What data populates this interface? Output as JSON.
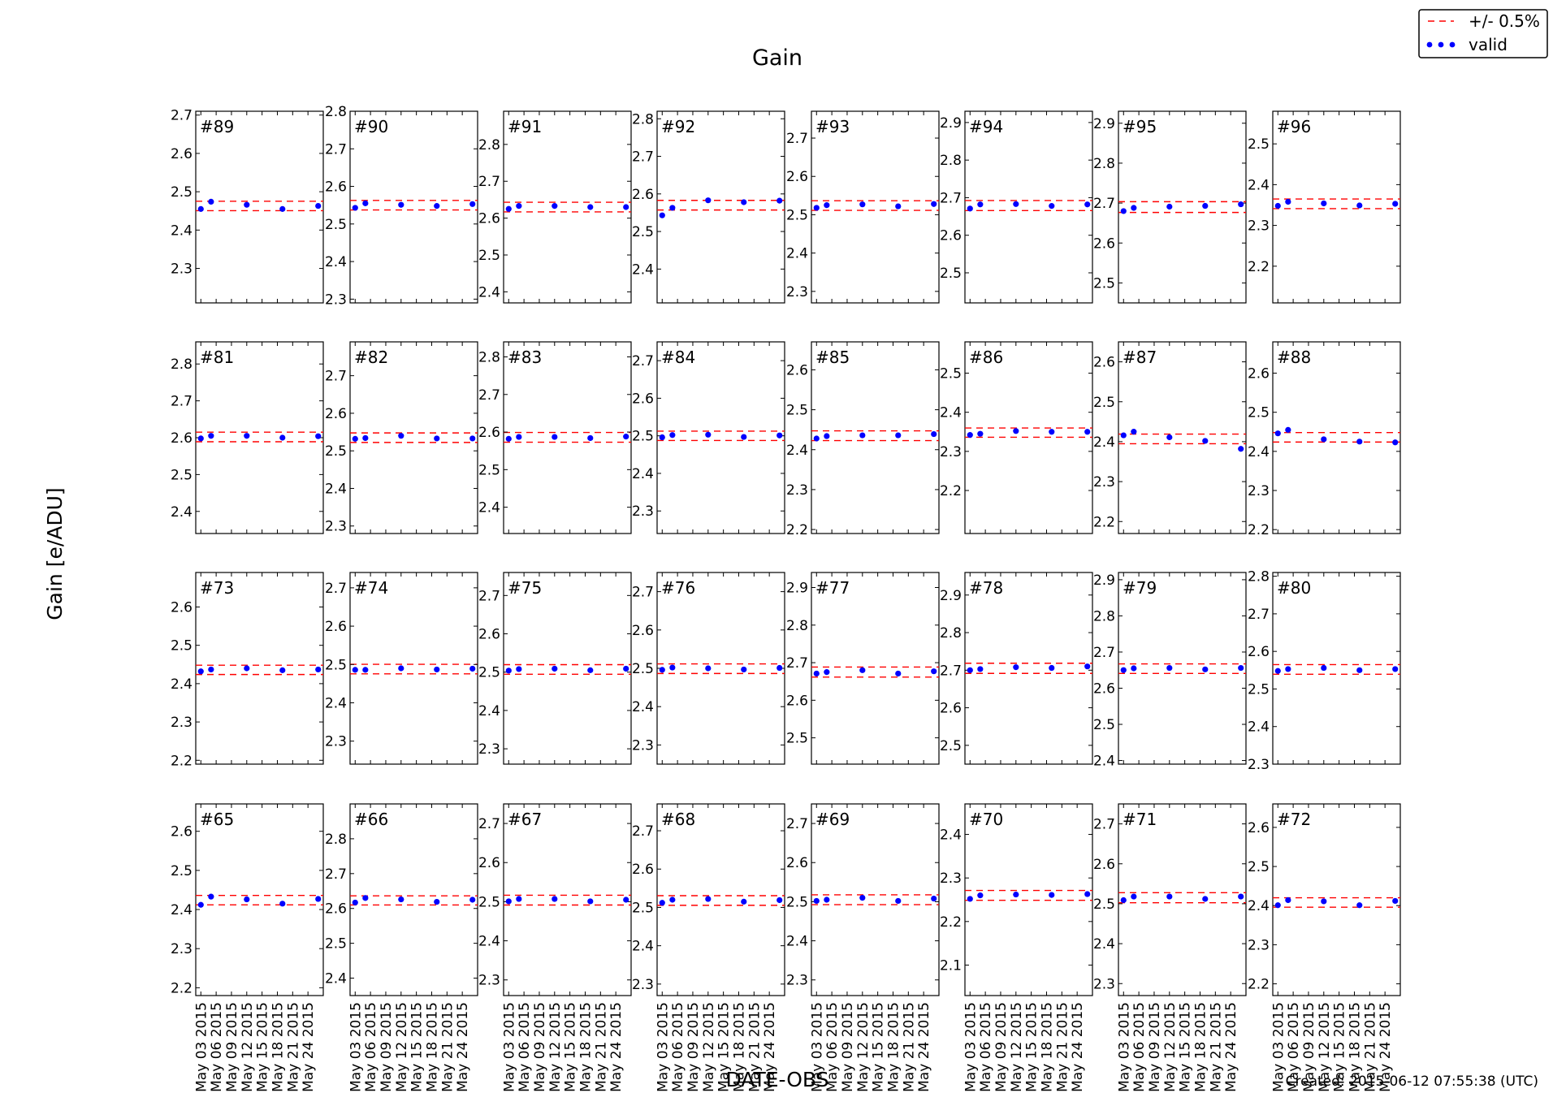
{
  "chart_data": {
    "type": "scatter",
    "title": "Gain",
    "ylabel": "Gain [e/ADU]",
    "xlabel": "DATE-OBS",
    "footer": "Created: 2015-06-12 07:55:38 (UTC)",
    "legend": {
      "placement": "top-right",
      "entries": [
        {
          "label": "+/- 0.5%",
          "style": "dashed-line",
          "color": "#ff0000"
        },
        {
          "label": "valid",
          "style": "dots",
          "color": "#0000ff"
        }
      ]
    },
    "x_dates": [
      "2015-05-03",
      "2015-05-05",
      "2015-05-12",
      "2015-05-19",
      "2015-05-26"
    ],
    "x_ticks": [
      "May 03 2015",
      "May 06 2015",
      "May 09 2015",
      "May 12 2015",
      "May 15 2015",
      "May 18 2015",
      "May 21 2015",
      "May 24 2015"
    ],
    "xlim": [
      "2015-05-02",
      "2015-05-27"
    ],
    "band_percent": 0.5,
    "colors": {
      "points": "#0000ff",
      "band": "#ff0000"
    },
    "panels": [
      {
        "label": "#89",
        "ylim": [
          2.21,
          2.71
        ],
        "yticks": [
          "2.3",
          "2.4",
          "2.5",
          "2.6",
          "2.7"
        ],
        "values": [
          2.455,
          2.474,
          2.466,
          2.455,
          2.463
        ],
        "center": 2.463
      },
      {
        "label": "#90",
        "ylim": [
          2.29,
          2.8
        ],
        "yticks": [
          "2.3",
          "2.4",
          "2.5",
          "2.6",
          "2.7",
          "2.8"
        ],
        "values": [
          2.543,
          2.555,
          2.551,
          2.548,
          2.553
        ],
        "center": 2.55
      },
      {
        "label": "#91",
        "ylim": [
          2.37,
          2.89
        ],
        "yticks": [
          "2.4",
          "2.5",
          "2.6",
          "2.7",
          "2.8"
        ],
        "values": [
          2.625,
          2.633,
          2.633,
          2.63,
          2.63
        ],
        "center": 2.63
      },
      {
        "label": "#92",
        "ylim": [
          2.31,
          2.82
        ],
        "yticks": [
          "2.4",
          "2.5",
          "2.6",
          "2.7",
          "2.8"
        ],
        "values": [
          2.543,
          2.563,
          2.583,
          2.578,
          2.582
        ],
        "center": 2.57
      },
      {
        "label": "#93",
        "ylim": [
          2.27,
          2.77
        ],
        "yticks": [
          "2.3",
          "2.4",
          "2.5",
          "2.6",
          "2.7"
        ],
        "values": [
          2.518,
          2.525,
          2.527,
          2.522,
          2.528
        ],
        "center": 2.524
      },
      {
        "label": "#94",
        "ylim": [
          2.42,
          2.93
        ],
        "yticks": [
          "2.5",
          "2.6",
          "2.7",
          "2.8",
          "2.9"
        ],
        "values": [
          2.671,
          2.682,
          2.683,
          2.678,
          2.682
        ],
        "center": 2.679
      },
      {
        "label": "#95",
        "ylim": [
          2.45,
          2.93
        ],
        "yticks": [
          "2.5",
          "2.6",
          "2.7",
          "2.8",
          "2.9"
        ],
        "values": [
          2.68,
          2.688,
          2.691,
          2.693,
          2.697
        ],
        "center": 2.69
      },
      {
        "label": "#96",
        "ylim": [
          2.11,
          2.58
        ],
        "yticks": [
          "2.2",
          "2.3",
          "2.4",
          "2.5"
        ],
        "values": [
          2.348,
          2.358,
          2.354,
          2.349,
          2.353
        ],
        "center": 2.353
      },
      {
        "label": "#81",
        "ylim": [
          2.34,
          2.86
        ],
        "yticks": [
          "2.4",
          "2.5",
          "2.6",
          "2.7",
          "2.8"
        ],
        "values": [
          2.598,
          2.605,
          2.605,
          2.6,
          2.604
        ],
        "center": 2.602
      },
      {
        "label": "#82",
        "ylim": [
          2.28,
          2.79
        ],
        "yticks": [
          "2.3",
          "2.4",
          "2.5",
          "2.6",
          "2.7"
        ],
        "values": [
          2.532,
          2.534,
          2.54,
          2.533,
          2.533
        ],
        "center": 2.535
      },
      {
        "label": "#83",
        "ylim": [
          2.33,
          2.84
        ],
        "yticks": [
          "2.4",
          "2.5",
          "2.6",
          "2.7",
          "2.8"
        ],
        "values": [
          2.582,
          2.587,
          2.587,
          2.584,
          2.588
        ],
        "center": 2.586
      },
      {
        "label": "#84",
        "ylim": [
          2.24,
          2.75
        ],
        "yticks": [
          "2.3",
          "2.4",
          "2.5",
          "2.6",
          "2.7"
        ],
        "values": [
          2.496,
          2.502,
          2.503,
          2.497,
          2.501
        ],
        "center": 2.5
      },
      {
        "label": "#85",
        "ylim": [
          2.19,
          2.67
        ],
        "yticks": [
          "2.2",
          "2.3",
          "2.4",
          "2.5",
          "2.6"
        ],
        "values": [
          2.428,
          2.434,
          2.436,
          2.436,
          2.439
        ],
        "center": 2.435
      },
      {
        "label": "#86",
        "ylim": [
          2.09,
          2.58
        ],
        "yticks": [
          "2.2",
          "2.3",
          "2.4",
          "2.5"
        ],
        "values": [
          2.342,
          2.345,
          2.352,
          2.35,
          2.35
        ],
        "center": 2.348
      },
      {
        "label": "#87",
        "ylim": [
          2.17,
          2.65
        ],
        "yticks": [
          "2.2",
          "2.3",
          "2.4",
          "2.5",
          "2.6"
        ],
        "values": [
          2.416,
          2.425,
          2.411,
          2.402,
          2.382
        ],
        "center": 2.407
      },
      {
        "label": "#88",
        "ylim": [
          2.19,
          2.68
        ],
        "yticks": [
          "2.2",
          "2.3",
          "2.4",
          "2.5",
          "2.6"
        ],
        "values": [
          2.446,
          2.455,
          2.431,
          2.425,
          2.423
        ],
        "center": 2.436
      },
      {
        "label": "#73",
        "ylim": [
          2.19,
          2.69
        ],
        "yticks": [
          "2.2",
          "2.3",
          "2.4",
          "2.5",
          "2.6"
        ],
        "values": [
          2.432,
          2.437,
          2.44,
          2.435,
          2.437
        ],
        "center": 2.436
      },
      {
        "label": "#74",
        "ylim": [
          2.24,
          2.74
        ],
        "yticks": [
          "2.3",
          "2.4",
          "2.5",
          "2.6",
          "2.7"
        ],
        "values": [
          2.486,
          2.486,
          2.49,
          2.487,
          2.489
        ],
        "center": 2.488
      },
      {
        "label": "#75",
        "ylim": [
          2.26,
          2.76
        ],
        "yticks": [
          "2.3",
          "2.4",
          "2.5",
          "2.6",
          "2.7"
        ],
        "values": [
          2.504,
          2.508,
          2.509,
          2.505,
          2.509
        ],
        "center": 2.507
      },
      {
        "label": "#76",
        "ylim": [
          2.25,
          2.75
        ],
        "yticks": [
          "2.3",
          "2.4",
          "2.5",
          "2.6",
          "2.7"
        ],
        "values": [
          2.496,
          2.502,
          2.5,
          2.497,
          2.501
        ],
        "center": 2.499
      },
      {
        "label": "#77",
        "ylim": [
          2.43,
          2.94
        ],
        "yticks": [
          "2.5",
          "2.6",
          "2.7",
          "2.8",
          "2.9"
        ],
        "values": [
          2.671,
          2.675,
          2.68,
          2.671,
          2.677
        ],
        "center": 2.675
      },
      {
        "label": "#78",
        "ylim": [
          2.45,
          2.96
        ],
        "yticks": [
          "2.5",
          "2.6",
          "2.7",
          "2.8",
          "2.9"
        ],
        "values": [
          2.7,
          2.703,
          2.708,
          2.706,
          2.71
        ],
        "center": 2.705
      },
      {
        "label": "#79",
        "ylim": [
          2.39,
          2.92
        ],
        "yticks": [
          "2.4",
          "2.5",
          "2.6",
          "2.7",
          "2.8",
          "2.9"
        ],
        "values": [
          2.65,
          2.655,
          2.656,
          2.652,
          2.656
        ],
        "center": 2.654
      },
      {
        "label": "#80",
        "ylim": [
          2.3,
          2.81
        ],
        "yticks": [
          "2.3",
          "2.4",
          "2.5",
          "2.6",
          "2.7",
          "2.8"
        ],
        "values": [
          2.548,
          2.553,
          2.556,
          2.55,
          2.553
        ],
        "center": 2.552
      },
      {
        "label": "#65",
        "ylim": [
          2.18,
          2.67
        ],
        "yticks": [
          "2.2",
          "2.3",
          "2.4",
          "2.5",
          "2.6"
        ],
        "values": [
          2.412,
          2.433,
          2.426,
          2.415,
          2.427
        ],
        "center": 2.424
      },
      {
        "label": "#66",
        "ylim": [
          2.35,
          2.9
        ],
        "yticks": [
          "2.4",
          "2.5",
          "2.6",
          "2.7",
          "2.8"
        ],
        "values": [
          2.617,
          2.63,
          2.626,
          2.619,
          2.625
        ],
        "center": 2.623
      },
      {
        "label": "#67",
        "ylim": [
          2.26,
          2.75
        ],
        "yticks": [
          "2.3",
          "2.4",
          "2.5",
          "2.6",
          "2.7"
        ],
        "values": [
          2.501,
          2.507,
          2.507,
          2.501,
          2.505
        ],
        "center": 2.504
      },
      {
        "label": "#68",
        "ylim": [
          2.27,
          2.77
        ],
        "yticks": [
          "2.3",
          "2.4",
          "2.5",
          "2.6",
          "2.7"
        ],
        "values": [
          2.512,
          2.52,
          2.522,
          2.515,
          2.519
        ],
        "center": 2.518
      },
      {
        "label": "#69",
        "ylim": [
          2.26,
          2.75
        ],
        "yticks": [
          "2.3",
          "2.4",
          "2.5",
          "2.6",
          "2.7"
        ],
        "values": [
          2.502,
          2.505,
          2.51,
          2.502,
          2.508
        ],
        "center": 2.505
      },
      {
        "label": "#70",
        "ylim": [
          2.03,
          2.47
        ],
        "yticks": [
          "2.1",
          "2.2",
          "2.3",
          "2.4"
        ],
        "values": [
          2.252,
          2.26,
          2.262,
          2.261,
          2.263
        ],
        "center": 2.26
      },
      {
        "label": "#71",
        "ylim": [
          2.27,
          2.75
        ],
        "yticks": [
          "2.3",
          "2.4",
          "2.5",
          "2.6",
          "2.7"
        ],
        "values": [
          2.509,
          2.518,
          2.518,
          2.512,
          2.518
        ],
        "center": 2.515
      },
      {
        "label": "#72",
        "ylim": [
          2.17,
          2.66
        ],
        "yticks": [
          "2.2",
          "2.3",
          "2.4",
          "2.5",
          "2.6"
        ],
        "values": [
          2.401,
          2.414,
          2.411,
          2.401,
          2.412
        ],
        "center": 2.408
      }
    ]
  }
}
